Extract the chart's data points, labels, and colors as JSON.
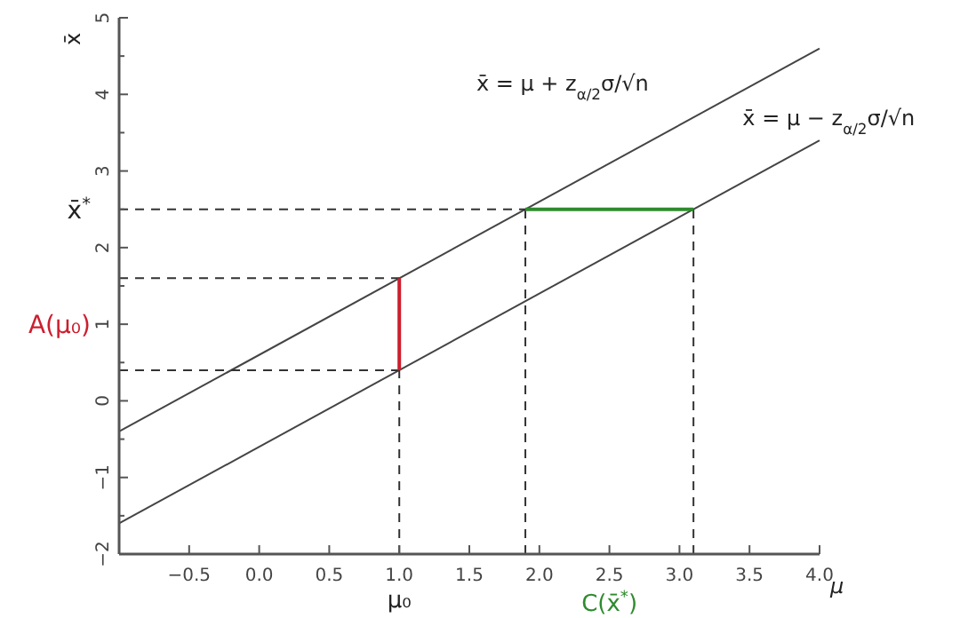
{
  "chart_data": {
    "type": "line",
    "xlabel": "μ",
    "ylabel": "x̄",
    "xlim": [
      -1,
      4
    ],
    "ylim": [
      -2,
      5
    ],
    "xticks": [
      {
        "value": -0.5,
        "label": "−0.5"
      },
      {
        "value": 0,
        "label": "0.0"
      },
      {
        "value": 0.5,
        "label": "0.5"
      },
      {
        "value": 1,
        "label": "1.0"
      },
      {
        "value": 1.5,
        "label": "1.5"
      },
      {
        "value": 2,
        "label": "2.0"
      },
      {
        "value": 2.5,
        "label": "2.5"
      },
      {
        "value": 3,
        "label": "3.0"
      },
      {
        "value": 3.5,
        "label": "3.5"
      },
      {
        "value": 4,
        "label": "4.0"
      }
    ],
    "yticks": [
      {
        "value": -2,
        "label": "−2"
      },
      {
        "value": -1.5,
        "label": null
      },
      {
        "value": -1,
        "label": "−1"
      },
      {
        "value": -0.5,
        "label": null
      },
      0,
      {
        "value": 0.5,
        "label": null
      },
      1,
      {
        "value": 1.5,
        "label": null
      },
      2,
      {
        "value": 2.5,
        "label": null
      },
      3,
      {
        "value": 3.5,
        "label": null
      },
      4,
      {
        "value": 4.5,
        "label": null
      },
      5
    ],
    "series": [
      {
        "color": "#444444",
        "x": [
          -1,
          4
        ],
        "values": [
          -0.4,
          4.6
        ]
      },
      {
        "color": "#444444",
        "x": [
          -1,
          4
        ],
        "values": [
          -1.6,
          3.4
        ]
      },
      {
        "color": "#333333",
        "line_style": "dashed",
        "x": [
          -1,
          1.9
        ],
        "values": [
          2.5,
          2.5
        ]
      },
      {
        "color": "#333333",
        "line_style": "dashed",
        "x": [
          1.9,
          1.9
        ],
        "values": [
          -2,
          2.5
        ]
      },
      {
        "color": "#333333",
        "line_style": "dashed",
        "x": [
          3.1,
          3.1
        ],
        "values": [
          -2,
          2.5
        ]
      },
      {
        "color": "#333333",
        "line_style": "dashed",
        "x": [
          -1,
          1
        ],
        "values": [
          1.6,
          1.6
        ]
      },
      {
        "color": "#333333",
        "line_style": "dashed",
        "x": [
          -1,
          1
        ],
        "values": [
          0.4,
          0.4
        ]
      },
      {
        "color": "#333333",
        "line_style": "dashed",
        "x": [
          1,
          1
        ],
        "values": [
          -2,
          0.4
        ]
      },
      {
        "name": "A(μ₀)",
        "color": "#cc1f2f",
        "x": [
          1,
          1
        ],
        "values": [
          0.4,
          1.6
        ]
      },
      {
        "name": "C(x̄$^{*}$)",
        "color": "#2e8b2e",
        "x": [
          1.9,
          3.1
        ],
        "values": [
          2.5,
          2.5
        ]
      }
    ],
    "annotations": [
      "x̄ = μ + z$_{α/2}$σ/√n",
      "x̄ = μ − z$_{α/2}$σ/√n",
      {
        "text": "x̄$^{*}$",
        "x": -1,
        "y": 2.5
      },
      {
        "text": "μ₀",
        "x": 1,
        "y": -2
      }
    ]
  }
}
